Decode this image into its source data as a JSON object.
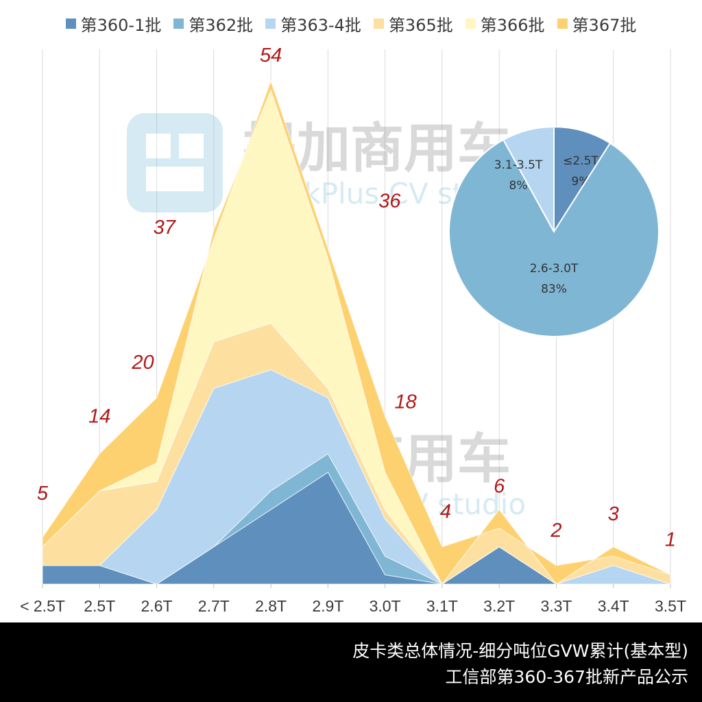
{
  "legend": {
    "items": [
      {
        "label": "第360-1批",
        "color": "#5f8fbd"
      },
      {
        "label": "第362批",
        "color": "#7fb6d4"
      },
      {
        "label": "第363-4批",
        "color": "#b5d5f0"
      },
      {
        "label": "第365批",
        "color": "#fddf9f"
      },
      {
        "label": "第366批",
        "color": "#fff7c2"
      },
      {
        "label": "第367批",
        "color": "#fdd16f"
      }
    ]
  },
  "watermark": {
    "brand": "提加商用车",
    "brand_en": "TruckPlus CV studio"
  },
  "chart_data": [
    {
      "type": "area",
      "stacked": true,
      "categories": [
        "< 2.5T",
        "2.5T",
        "2.6T",
        "2.7T",
        "2.8T",
        "2.9T",
        "3.0T",
        "3.1T",
        "3.2T",
        "3.3T",
        "3.4T",
        "3.5T"
      ],
      "series": [
        {
          "name": "第360-1批",
          "color": "#5f8fbd",
          "values": [
            2,
            2,
            0,
            4,
            8,
            12,
            1,
            0,
            4,
            0,
            0,
            0
          ]
        },
        {
          "name": "第362批",
          "color": "#7fb6d4",
          "values": [
            0,
            0,
            0,
            0,
            2,
            2,
            2,
            0,
            0,
            0,
            0,
            0
          ]
        },
        {
          "name": "第363-4批",
          "color": "#b5d5f0",
          "values": [
            0,
            0,
            8,
            17,
            13,
            6,
            4,
            0,
            0,
            0,
            2,
            0
          ]
        },
        {
          "name": "第365批",
          "color": "#fddf9f",
          "values": [
            2,
            8,
            3,
            5,
            5,
            1,
            1,
            0,
            4,
            0,
            2,
            1
          ]
        },
        {
          "name": "第366批",
          "color": "#fff7c2",
          "values": [
            0,
            0,
            2,
            12,
            25,
            14,
            4,
            0,
            0,
            0,
            0,
            0
          ]
        },
        {
          "name": "第367批",
          "color": "#fdd16f",
          "values": [
            1,
            4,
            7,
            -1,
            1,
            1,
            6,
            4,
            -2,
            2,
            -1,
            0
          ]
        }
      ],
      "totals": [
        5,
        14,
        20,
        37,
        54,
        36,
        18,
        4,
        6,
        2,
        3,
        1
      ],
      "ylim": [
        0,
        56
      ],
      "grid": "vertical",
      "legend_position": "top",
      "xlabel": "",
      "ylabel": ""
    },
    {
      "type": "pie",
      "slices": [
        {
          "label": "≤2.5T",
          "value": 9,
          "percent": "9%",
          "color": "#5f8fbd"
        },
        {
          "label": "2.6-3.0T",
          "value": 83,
          "percent": "83%",
          "color": "#7fb6d4"
        },
        {
          "label": "3.1-3.5T",
          "value": 8,
          "percent": "8%",
          "color": "#b5d5f0"
        }
      ]
    }
  ],
  "footer": {
    "title": "皮卡类总体情况-细分吨位GVW累计(基本型)",
    "subtitle": "工信部第360-367批新产品公示"
  }
}
